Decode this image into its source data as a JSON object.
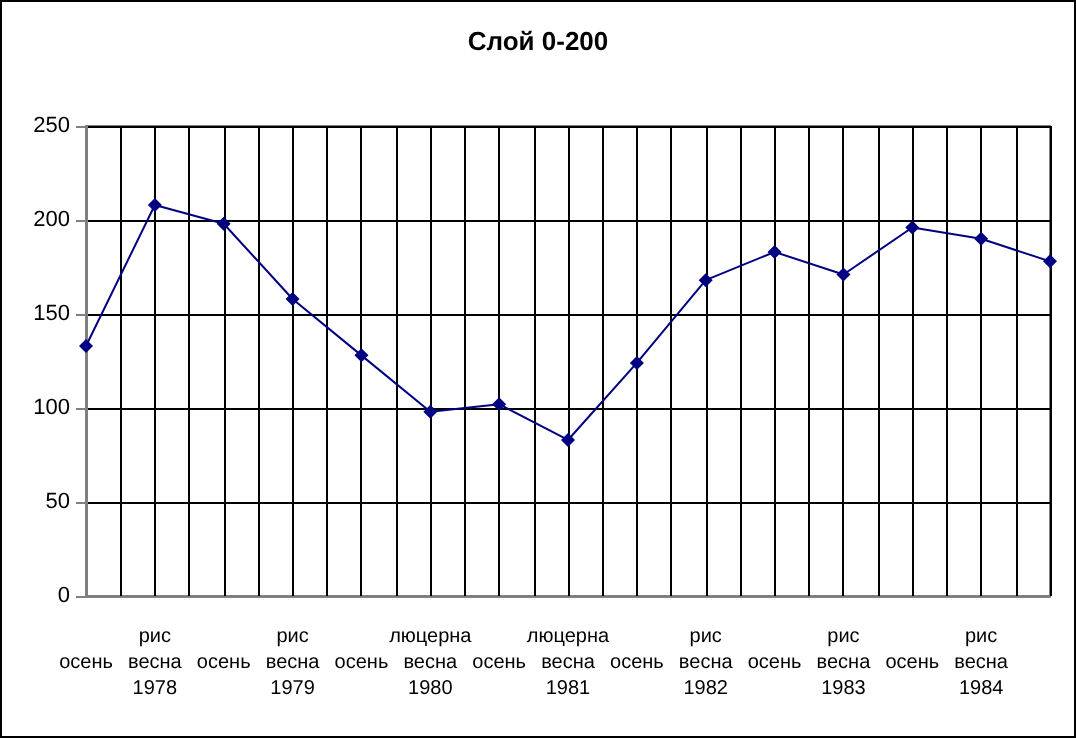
{
  "chart_data": {
    "type": "line",
    "title": "Слой 0-200",
    "categories": [
      "осень",
      "рис\nвесна\n1978",
      "осень",
      "рис\nвесна\n1979",
      "осень",
      "люцерна\nвесна\n1980",
      "осень",
      "люцерна\nвесна\n1981",
      "осень",
      "рис\nвесна\n1982",
      "осень",
      "рис\nвесна\n1983",
      "осень",
      "рис\nвесна\n1984",
      null
    ],
    "series": [
      {
        "color": "#000080",
        "values": [
          133,
          208,
          198,
          158,
          128,
          98,
          102,
          83,
          124,
          168,
          183,
          171,
          196,
          190,
          178
        ]
      }
    ],
    "ylim": [
      0,
      250
    ],
    "yticks": [
      0,
      50,
      100,
      150,
      200,
      250
    ],
    "grid": true,
    "marker": "diamond",
    "line_style": "solid"
  }
}
